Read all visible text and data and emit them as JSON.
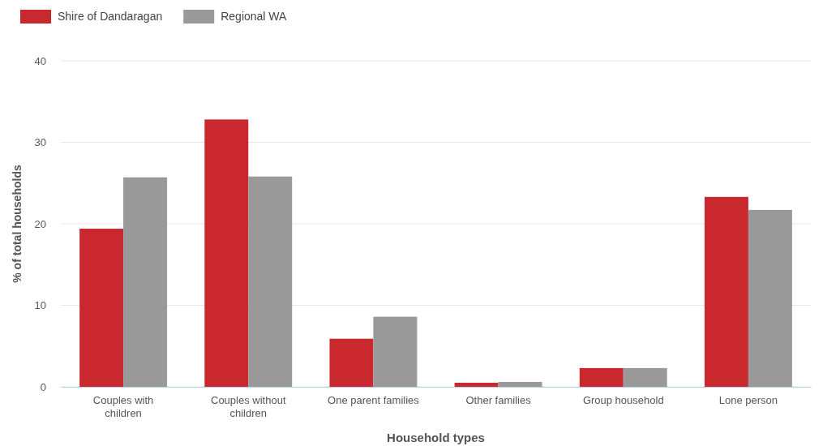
{
  "chart_data": {
    "type": "bar",
    "xlabel": "Household types",
    "ylabel": "% of total households",
    "categories": [
      "Couples with children",
      "Couples without children",
      "One parent families",
      "Other families",
      "Group household",
      "Lone person"
    ],
    "series": [
      {
        "name": "Shire of Dandaragan",
        "color": "#c8282e",
        "values": [
          19.4,
          32.8,
          5.9,
          0.5,
          2.3,
          23.3
        ]
      },
      {
        "name": "Regional WA",
        "color": "#999999",
        "values": [
          25.7,
          25.8,
          8.6,
          0.6,
          2.3,
          21.7
        ]
      }
    ],
    "ylim": [
      0,
      40
    ],
    "yticks": [
      0,
      10,
      20,
      30,
      40
    ],
    "grid": "y",
    "legend": "top left"
  }
}
